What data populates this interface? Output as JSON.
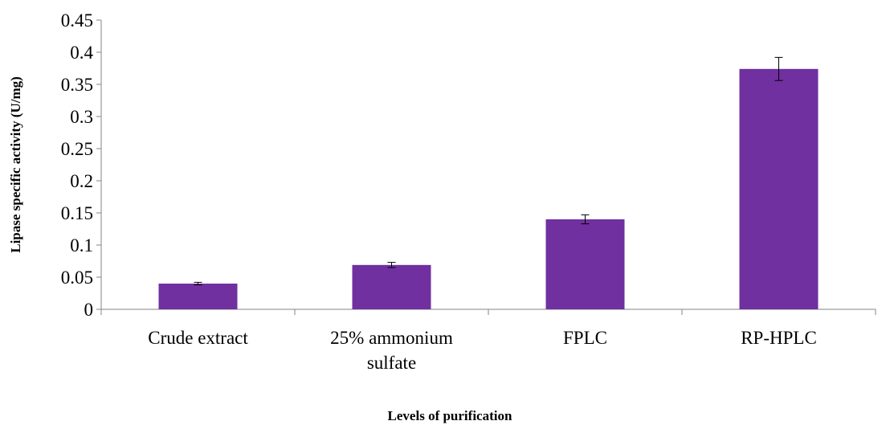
{
  "chart_data": {
    "type": "bar",
    "categories": [
      [
        "Crude extract"
      ],
      [
        "25% ammonium",
        "sulfate"
      ],
      [
        "FPLC"
      ],
      [
        "RP-HPLC"
      ]
    ],
    "values": [
      0.04,
      0.069,
      0.14,
      0.374
    ],
    "errors": [
      0.002,
      0.004,
      0.007,
      0.018
    ],
    "xlabel": "Levels of purification",
    "ylabel": "Lipase specific activity (U/mg)",
    "ylim": [
      0,
      0.45
    ],
    "yticks": [
      "0",
      "0.05",
      "0.1",
      "0.15",
      "0.2",
      "0.25",
      "0.3",
      "0.35",
      "0.4",
      "0.45"
    ],
    "bar_color": "#7030a0",
    "grid": false,
    "legend": "none"
  }
}
